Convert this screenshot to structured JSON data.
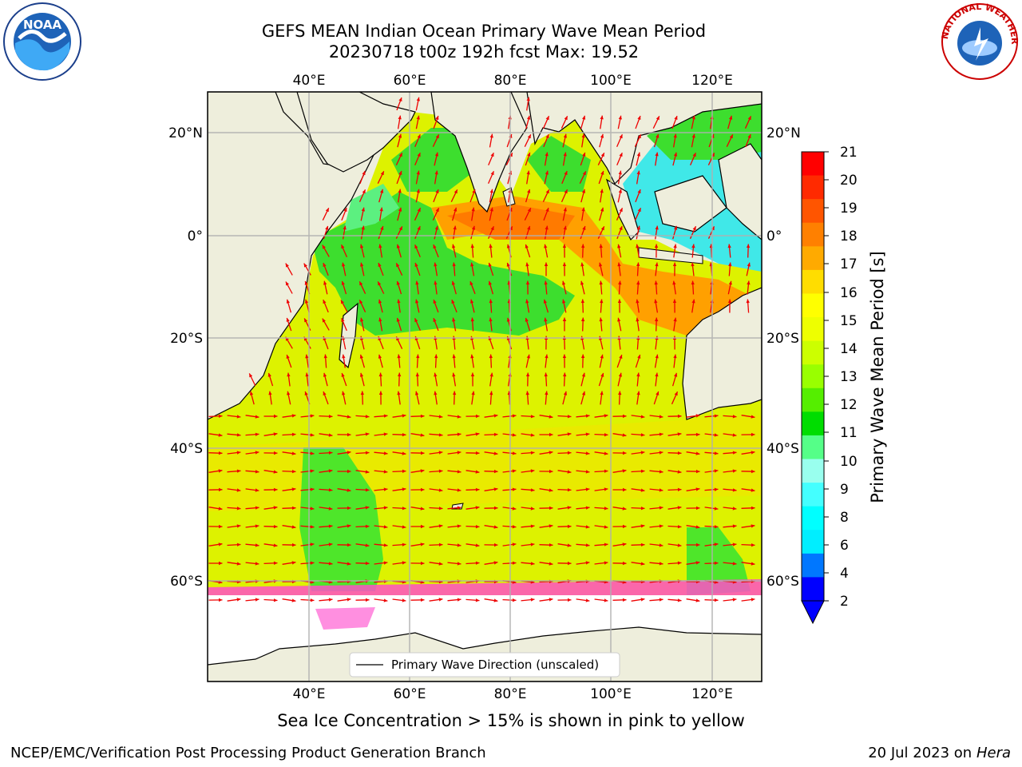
{
  "title": {
    "line1": "GEFS MEAN Indian Ocean Primary Wave Mean Period",
    "line2": "20230718 t00z 192h fcst   Max: 19.52"
  },
  "logos": {
    "left": "NOAA",
    "right": "NATIONAL WEATHER SERVICE"
  },
  "map": {
    "lon_labels": [
      "40°E",
      "60°E",
      "80°E",
      "100°E",
      "120°E"
    ],
    "lat_labels": [
      "20°N",
      "0°",
      "20°S",
      "40°S",
      "60°S"
    ],
    "legend_label": "Primary Wave Direction (unscaled)"
  },
  "colorbar": {
    "title": "Primary Wave Mean Period [s]",
    "ticks": [
      "21",
      "20",
      "19",
      "18",
      "17",
      "16",
      "15",
      "14",
      "13",
      "12",
      "11",
      "10",
      "9",
      "8",
      "6",
      "4",
      "2"
    ],
    "colors": [
      "#ff0000",
      "#ff2a00",
      "#ff5500",
      "#ff8000",
      "#ffaa00",
      "#ffdd00",
      "#ffff00",
      "#eeff00",
      "#ccff00",
      "#99ff00",
      "#55ee00",
      "#00dd00",
      "#55ff88",
      "#99ffee",
      "#44ffff",
      "#00ffff",
      "#00eeff",
      "#0077ff",
      "#0000ff"
    ]
  },
  "caption": "Sea Ice Concentration > 15% is shown in pink to yellow",
  "footer": {
    "left": "NCEP/EMC/Verification Post Processing Product Generation Branch",
    "date": "20 Jul 2023 on",
    "machine": "Hera"
  }
}
